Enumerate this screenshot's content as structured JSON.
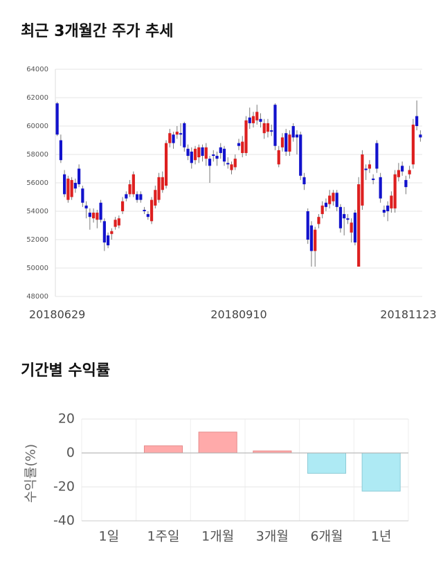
{
  "chart_data": [
    {
      "type": "candlestick",
      "title": "최근 3개월간 주가 추세",
      "categories": [
        "20180629",
        null,
        null,
        null,
        null,
        null,
        null,
        null,
        null,
        null,
        null,
        null,
        null,
        null,
        null,
        null,
        null,
        null,
        null,
        null,
        null,
        null,
        null,
        null,
        null,
        null,
        null,
        null,
        null,
        null,
        null,
        null,
        null,
        null,
        null,
        null,
        null,
        null,
        null,
        null,
        null,
        null,
        null,
        null,
        null,
        null,
        null,
        null,
        null,
        null,
        "20180910",
        null,
        null,
        null,
        null,
        null,
        null,
        null,
        null,
        null,
        null,
        null,
        null,
        null,
        null,
        null,
        null,
        null,
        null,
        null,
        null,
        null,
        null,
        null,
        null,
        null,
        null,
        null,
        null,
        null,
        null,
        null,
        null,
        null,
        null,
        null,
        null,
        null,
        null,
        null,
        null,
        null,
        null,
        null,
        null,
        null,
        null,
        null,
        null,
        null,
        "20181123"
      ],
      "open": [
        61600,
        59000,
        56600,
        54800,
        55000,
        56000,
        57000,
        55600,
        54400,
        53900,
        53500,
        53400,
        54600,
        53300,
        52300,
        52400,
        52900,
        53000,
        54000,
        55200,
        55200,
        55200,
        55200,
        55200,
        54100,
        53800,
        53300,
        54400,
        54800,
        55500,
        55800,
        58800,
        59400,
        59400,
        59500,
        60200,
        58400,
        58200,
        57600,
        57800,
        58500,
        57700,
        57700,
        58000,
        57900,
        58500,
        58400,
        57400,
        56900,
        57100,
        58800,
        58100,
        58100,
        60600,
        60200,
        60400,
        60500,
        59500,
        59600,
        59700,
        61500,
        57300,
        58500,
        59500,
        58200,
        60000,
        59400,
        59400,
        56400,
        54000,
        53000,
        51200,
        53100,
        53800,
        54600,
        54500,
        54700,
        55300,
        54300,
        53800,
        53500,
        52500,
        53900,
        50100,
        54400,
        57000,
        57000,
        56300,
        58800,
        56400,
        54100,
        54400,
        54200,
        54200,
        56400,
        57200,
        56200,
        56600,
        57300,
        60700,
        59400
      ],
      "high": [
        61700,
        59400,
        56900,
        56500,
        56400,
        56300,
        57300,
        55800,
        54700,
        54200,
        54200,
        54100,
        54800,
        53500,
        52500,
        52800,
        53600,
        53700,
        55000,
        55400,
        56200,
        56800,
        55400,
        55400,
        54300,
        54000,
        55000,
        55800,
        56700,
        56800,
        59000,
        59800,
        59600,
        60000,
        60200,
        60300,
        58700,
        58500,
        58600,
        58700,
        58700,
        58800,
        57900,
        58300,
        58200,
        58800,
        58600,
        57800,
        57500,
        58000,
        59100,
        59300,
        60700,
        61300,
        61000,
        61500,
        60900,
        60500,
        60500,
        60100,
        61600,
        58600,
        59500,
        59800,
        59700,
        60200,
        59700,
        59600,
        56700,
        54200,
        53300,
        52900,
        53800,
        54700,
        54900,
        55500,
        55500,
        55500,
        54500,
        54300,
        53800,
        53500,
        54100,
        56400,
        58300,
        57300,
        57600,
        56600,
        59000,
        56700,
        54400,
        54700,
        55400,
        56900,
        57400,
        57500,
        56500,
        57200,
        60500,
        61800,
        59700
      ],
      "low": [
        59300,
        57400,
        55000,
        54600,
        54800,
        55300,
        55700,
        54300,
        53500,
        52700,
        53200,
        52800,
        53200,
        51200,
        51400,
        52000,
        52700,
        52800,
        53800,
        54700,
        55000,
        55000,
        54600,
        54600,
        53800,
        53400,
        53100,
        54200,
        54600,
        55300,
        55600,
        58500,
        58400,
        59100,
        58600,
        58200,
        57600,
        57000,
        57300,
        57400,
        57500,
        57200,
        56000,
        57500,
        57200,
        57700,
        57200,
        57000,
        56600,
        56900,
        58300,
        57800,
        57900,
        59800,
        59900,
        60100,
        59900,
        59100,
        59200,
        59300,
        58300,
        57100,
        58200,
        57900,
        57900,
        58900,
        58000,
        56200,
        55500,
        51700,
        50100,
        50100,
        52800,
        53500,
        54000,
        54200,
        54400,
        54000,
        52500,
        52300,
        53100,
        51800,
        51600,
        50100,
        54100,
        56200,
        56700,
        55900,
        56700,
        54600,
        53600,
        53300,
        53900,
        53900,
        56100,
        56500,
        55200,
        56300,
        57000,
        59700,
        58900
      ],
      "close": [
        59400,
        57600,
        55200,
        56300,
        56200,
        55600,
        55900,
        54600,
        54200,
        53600,
        53900,
        53900,
        53400,
        51800,
        51600,
        52600,
        53400,
        53500,
        54700,
        54900,
        55900,
        56600,
        54800,
        54800,
        54000,
        53600,
        54800,
        55500,
        56400,
        56400,
        58800,
        59500,
        58800,
        59600,
        59400,
        58500,
        57900,
        57400,
        58400,
        58500,
        57900,
        58500,
        57200,
        57900,
        57700,
        58100,
        57500,
        57300,
        57300,
        57700,
        58600,
        58900,
        60400,
        60200,
        60700,
        61000,
        60300,
        60200,
        60200,
        59600,
        58600,
        58300,
        59200,
        58200,
        59400,
        59200,
        59200,
        56500,
        55900,
        52000,
        51200,
        52700,
        53600,
        54400,
        54300,
        55100,
        55300,
        54300,
        52800,
        53500,
        53400,
        53200,
        51800,
        55900,
        58000,
        56900,
        57300,
        56200,
        57000,
        54900,
        53900,
        54000,
        55100,
        56600,
        56900,
        56800,
        55700,
        56900,
        60100,
        60000,
        59200
      ],
      "up_color": "#dd1f1f",
      "down_color": "#1212cc",
      "ylim": [
        48000,
        64000
      ],
      "yticks": [
        48000,
        50000,
        52000,
        54000,
        56000,
        58000,
        60000,
        62000,
        64000
      ],
      "grid": true
    },
    {
      "type": "bar",
      "title": "기간별 수익률",
      "ylabel": "수익률(%)",
      "categories": [
        "1일",
        "1주일",
        "1개월",
        "3개월",
        "6개월",
        "1년"
      ],
      "values": [
        0,
        4.2,
        12.3,
        1.2,
        -12,
        -22.5
      ],
      "positive_color": "#ffaaaa",
      "negative_color": "#aeeaf4",
      "ylim": [
        -40,
        20
      ],
      "yticks": [
        -40,
        -20,
        0,
        20
      ],
      "grid": true
    }
  ]
}
